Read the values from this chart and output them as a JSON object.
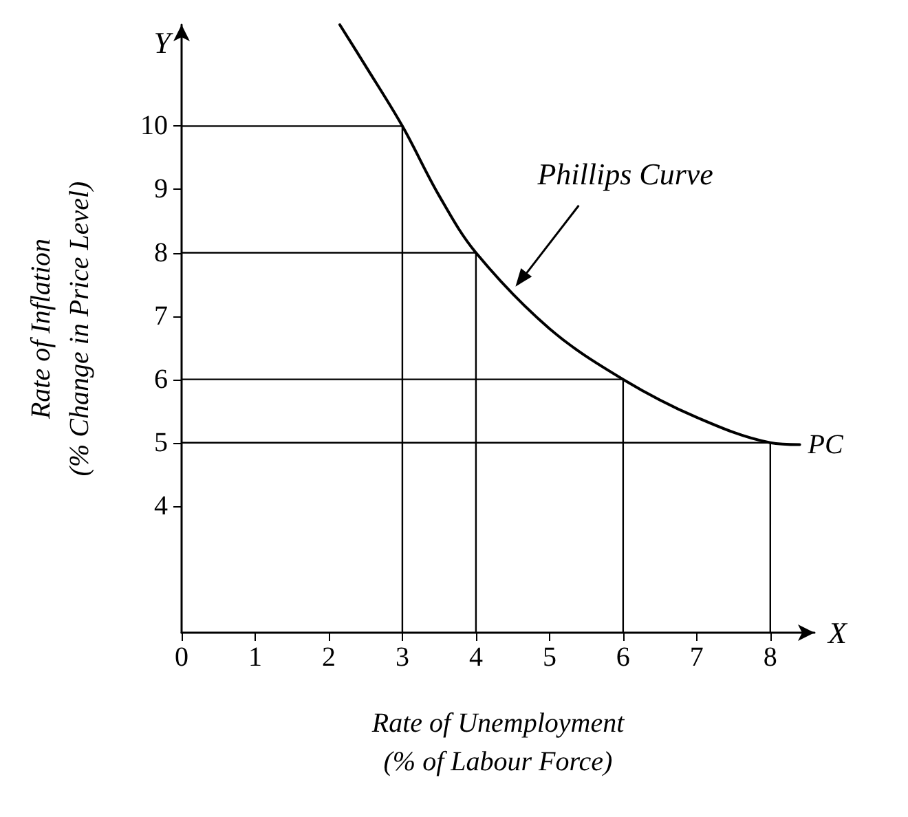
{
  "chart_data": {
    "type": "line",
    "xlabel": "Rate of Unemployment\n(% of Labour Force)",
    "ylabel": "Rate of Inflation\n(% Change in Price Level)",
    "xlim": [
      0,
      8.6
    ],
    "xticks": [
      0,
      1,
      2,
      3,
      4,
      5,
      6,
      7,
      8
    ],
    "ylim": [
      2,
      11.6
    ],
    "yticks": [
      4,
      5,
      6,
      7,
      8,
      9,
      10
    ],
    "grid": false,
    "legend": false,
    "marker": "none",
    "line_style": "solid",
    "series": [
      {
        "name": "PC",
        "color": "#000000",
        "x": [
          2.15,
          2.5,
          3,
          3.5,
          4,
          5,
          6,
          7,
          8,
          8.4
        ],
        "values": [
          11.6,
          10.95,
          10,
          8.9,
          8,
          6.8,
          6,
          5.4,
          5,
          4.97
        ]
      },
      {
        "color": "#000000",
        "x": [
          0,
          3,
          3
        ],
        "values": [
          10,
          10,
          2
        ]
      },
      {
        "color": "#000000",
        "x": [
          0,
          4,
          4
        ],
        "values": [
          8,
          8,
          2
        ]
      },
      {
        "color": "#000000",
        "x": [
          0,
          6,
          6
        ],
        "values": [
          6,
          6,
          2
        ]
      },
      {
        "color": "#000000",
        "x": [
          0,
          8,
          8
        ],
        "values": [
          5,
          5,
          2
        ]
      }
    ],
    "annotations": [
      "Phillips Curve",
      "Y",
      "X"
    ]
  }
}
